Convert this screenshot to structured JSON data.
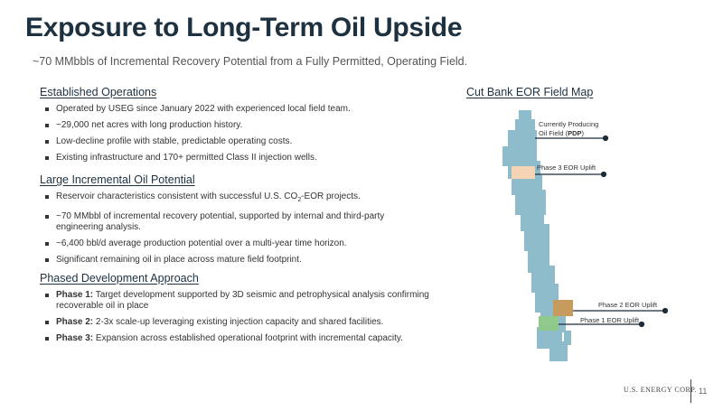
{
  "title": "Exposure to Long-Term Oil Upside",
  "subtitle": "~70 MMbbls of Incremental Recovery Potential from a Fully Permitted, Operating Field.",
  "sections": [
    {
      "heading": "Established Operations",
      "bullets": [
        "Operated by USEG since January 2022 with experienced local field team.",
        "~29,000 net acres with long production history.",
        "Low-decline profile with stable, predictable operating costs.",
        "Existing infrastructure and 170+ permitted Class II injection wells."
      ]
    },
    {
      "heading": "Large Incremental Oil Potential",
      "bullets": [
        "~70 MMbbl of incremental recovery potential, supported by internal and third-party engineering analysis.",
        "~6,400 bbl/d average production potential over a multi-year time horizon.",
        "Significant remaining oil in place across mature field footprint."
      ],
      "co2_bullet": {
        "prefix": "Reservoir characteristics consistent with successful U.S. CO",
        "sub": "2",
        "suffix": "-EOR projects."
      }
    },
    {
      "heading": "Phased Development Approach",
      "phases": [
        {
          "label": "Phase 1:",
          "text": " Target development supported by 3D seismic and petrophysical analysis confirming recoverable oil in place"
        },
        {
          "label": "Phase 2:",
          "text": " 2-3x scale-up leveraging existing injection capacity and shared facilities."
        },
        {
          "label": "Phase 3:",
          "text": " Expansion across established operational footprint with incremental capacity."
        }
      ]
    }
  ],
  "map": {
    "title": "Cut Bank EOR Field Map",
    "label_pdp_line1": "Currently Producing",
    "label_pdp_line2_prefix": "Oil Field (",
    "label_pdp_bold": "PDP",
    "label_pdp_line2_suffix": ")",
    "label_phase3": "Phase 3 EOR Uplift",
    "label_phase2": "Phase 2 EOR Uplift",
    "label_phase1": "Phase 1 EOR Uplift",
    "colors": {
      "field": "#8fbccb",
      "phase3": "#f5d3b5",
      "phase2": "#c79a5e",
      "phase1": "#8fca8c",
      "leader": "#1d2b36"
    }
  },
  "footer": {
    "logo": "U.S. ENERGY CORP.",
    "page": "11"
  }
}
